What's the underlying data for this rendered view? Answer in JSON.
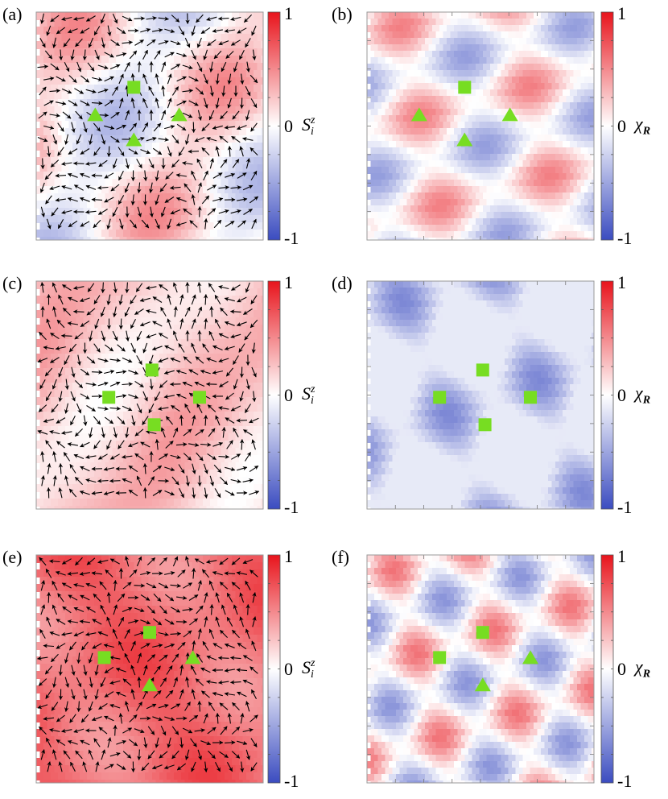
{
  "figure": {
    "panels": [
      {
        "label": "(a)",
        "kind": "spin",
        "colorbar_label": "S",
        "colorbar_sup": "z",
        "colorbar_sub": "i",
        "ticks": {
          "max": "1",
          "mid": "0",
          "min": "-1"
        },
        "markers": [
          [
            "square",
            0.43,
            0.33
          ],
          [
            "triangle",
            0.26,
            0.45
          ],
          [
            "triangle",
            0.63,
            0.45
          ],
          [
            "triangle",
            0.43,
            0.56
          ]
        ]
      },
      {
        "label": "(b)",
        "kind": "chi",
        "colorbar_label": "χ",
        "colorbar_sub": "R",
        "ticks": {
          "max": "1",
          "mid": "0",
          "min": "-1"
        },
        "markers": [
          [
            "square",
            0.43,
            0.33
          ],
          [
            "triangle",
            0.23,
            0.45
          ],
          [
            "triangle",
            0.63,
            0.45
          ],
          [
            "triangle",
            0.43,
            0.56
          ]
        ]
      },
      {
        "label": "(c)",
        "kind": "spin",
        "colorbar_label": "S",
        "colorbar_sup": "z",
        "colorbar_sub": "i",
        "ticks": {
          "max": "1",
          "mid": "0",
          "min": "-1"
        },
        "markers": [
          [
            "square",
            0.51,
            0.39
          ],
          [
            "square",
            0.32,
            0.51
          ],
          [
            "square",
            0.72,
            0.51
          ],
          [
            "square",
            0.52,
            0.63
          ]
        ]
      },
      {
        "label": "(d)",
        "kind": "chi",
        "colorbar_label": "χ",
        "colorbar_sub": "R",
        "ticks": {
          "max": "1",
          "mid": "0",
          "min": "-1"
        },
        "markers": [
          [
            "square",
            0.51,
            0.39
          ],
          [
            "square",
            0.32,
            0.51
          ],
          [
            "square",
            0.72,
            0.51
          ],
          [
            "square",
            0.52,
            0.63
          ]
        ]
      },
      {
        "label": "(e)",
        "kind": "spin",
        "colorbar_label": "S",
        "colorbar_sup": "z",
        "colorbar_sub": "i",
        "ticks": {
          "max": "1",
          "mid": "0",
          "min": "-1"
        },
        "markers": [
          [
            "square",
            0.5,
            0.34
          ],
          [
            "square",
            0.3,
            0.45
          ],
          [
            "triangle",
            0.69,
            0.45
          ],
          [
            "triangle",
            0.5,
            0.57
          ]
        ]
      },
      {
        "label": "(f)",
        "kind": "chi",
        "colorbar_label": "χ",
        "colorbar_sub": "R",
        "ticks": {
          "max": "1",
          "mid": "0",
          "min": "-1"
        },
        "markers": [
          [
            "square",
            0.51,
            0.34
          ],
          [
            "square",
            0.32,
            0.45
          ],
          [
            "triangle",
            0.72,
            0.45
          ],
          [
            "triangle",
            0.51,
            0.57
          ]
        ]
      }
    ],
    "colors": {
      "cmap_low": "#3b4cc0",
      "cmap_mid": "#ffffff",
      "cmap_high": "#e8141c",
      "marker": "#77dd22",
      "arrow": "#000000",
      "frame": "#999999"
    }
  }
}
